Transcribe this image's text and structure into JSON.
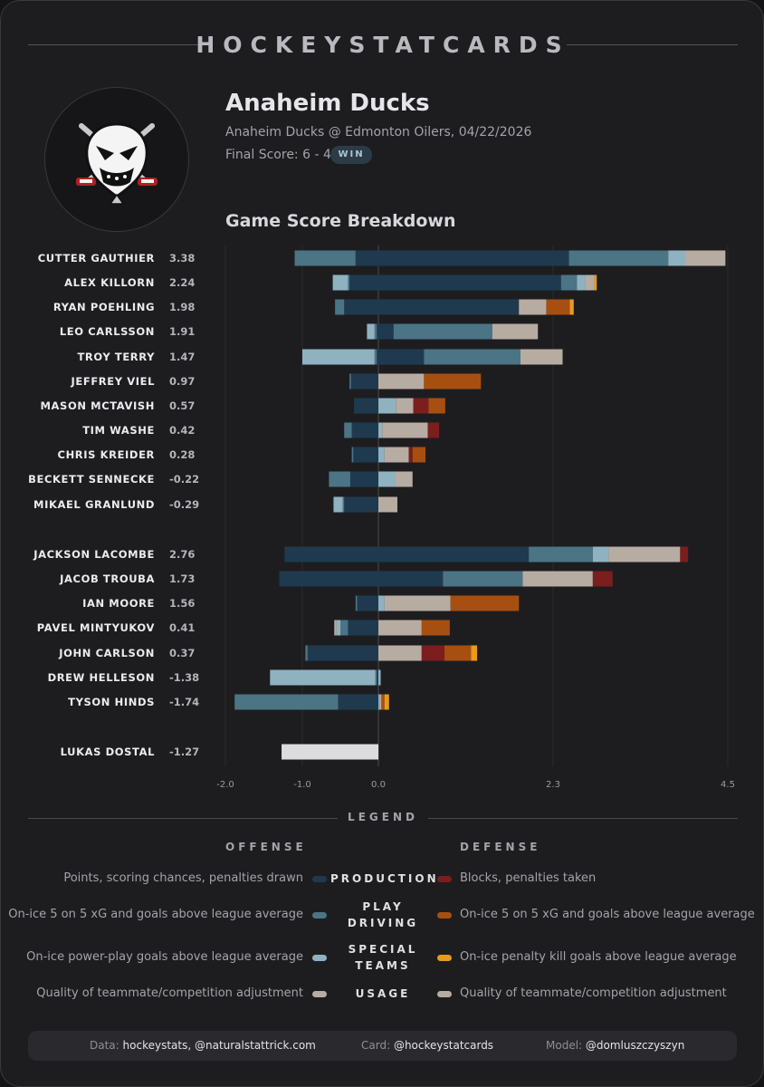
{
  "header": {
    "brand": "HOCKEYSTATCARDS",
    "team": "Anaheim Ducks",
    "game": "Anaheim Ducks @ Edmonton Oilers, 04/22/2026",
    "final_score": "Final Score: 6 - 4",
    "result": "WIN",
    "section_title": "Game Score Breakdown"
  },
  "colors": {
    "production_off": "#1f3a4f",
    "play_driving_off": "#4b7485",
    "special_teams_off": "#8fb2c1",
    "usage": "#b7aca2",
    "production_def": "#7a1e1e",
    "play_driving_def": "#a74f11",
    "special_teams_def": "#e99a1c",
    "goalie": "#dcdcdc"
  },
  "chart_data": {
    "type": "bar",
    "orientation": "horizontal",
    "stacked": true,
    "x_ticks": [
      "-2.0",
      "-1.0",
      "0.0",
      "2.3",
      "4.5"
    ],
    "segment_order": [
      "Production (offense)",
      "Play driving (offense)",
      "Special teams (offense)",
      "Usage",
      "Production (defense)",
      "Play driving (defense)",
      "Special teams (defense)"
    ],
    "players": [
      {
        "name": "CUTTER GAUTHIER",
        "score": "3.38",
        "pos": [
          2.5,
          1.25,
          0.22,
          0.5
        ],
        "neg": [
          -0.3,
          -0.8,
          0,
          0
        ]
      },
      {
        "name": "ALEX KILLORN",
        "score": "2.24",
        "pos": [
          2.4,
          0.2,
          0.1,
          0.12,
          0,
          0,
          0.03
        ],
        "neg": [
          -0.38,
          -0.02,
          -0.2
        ]
      },
      {
        "name": "RYAN POEHLING",
        "score": "1.98",
        "pos": [
          1.85,
          0,
          0,
          0.36,
          0,
          0.3,
          0.05
        ],
        "neg": [
          -0.45,
          -0.12
        ]
      },
      {
        "name": "LEO CARLSSON",
        "score": "1.91",
        "pos": [
          0.2,
          1.3,
          0,
          0.6
        ],
        "neg": [
          -0.02,
          -0.03,
          -0.1
        ]
      },
      {
        "name": "TROY TERRY",
        "score": "1.47",
        "pos": [
          0.6,
          1.27,
          0,
          0.55
        ],
        "neg": [
          -0.02,
          -0.03,
          -0.95
        ]
      },
      {
        "name": "JEFFREY VIEL",
        "score": "0.97",
        "pos": [
          0,
          0,
          0,
          0.6,
          0,
          0.75
        ],
        "neg": [
          -0.36,
          -0.02
        ]
      },
      {
        "name": "MASON MCTAVISH",
        "score": "0.57",
        "pos": [
          0,
          0,
          0.23,
          0.23,
          0.2,
          0.22
        ],
        "neg": [
          -0.32
        ]
      },
      {
        "name": "TIM WASHE",
        "score": "0.42",
        "pos": [
          0,
          0,
          0.05,
          0.6,
          0.15
        ],
        "neg": [
          -0.35,
          -0.1
        ]
      },
      {
        "name": "CHRIS KREIDER",
        "score": "0.28",
        "pos": [
          0,
          0,
          0.08,
          0.32,
          0.05,
          0.17
        ],
        "neg": [
          -0.33,
          -0.02
        ]
      },
      {
        "name": "BECKETT SENNECKE",
        "score": "-0.22",
        "pos": [
          0,
          0,
          0.22,
          0.23
        ],
        "neg": [
          -0.37,
          -0.28
        ]
      },
      {
        "name": "MIKAEL GRANLUND",
        "score": "-0.29",
        "pos": [
          0,
          0,
          0,
          0.25
        ],
        "neg": [
          -0.45,
          -0.02,
          -0.12
        ]
      },
      {
        "name": "JACKSON LACOMBE",
        "score": "2.76",
        "pos": [
          1.98,
          0.82,
          0.2,
          0.9,
          0.1
        ],
        "neg": [
          -1.23
        ]
      },
      {
        "name": "JACOB TROUBA",
        "score": "1.73",
        "pos": [
          0.85,
          1.05,
          0,
          0.9,
          0.25
        ],
        "neg": [
          -1.3
        ]
      },
      {
        "name": "IAN MOORE",
        "score": "1.56",
        "pos": [
          0,
          0,
          0.08,
          0.87,
          0,
          0.9
        ],
        "neg": [
          -0.28,
          -0.02
        ]
      },
      {
        "name": "PAVEL MINTYUKOV",
        "score": "0.41",
        "pos": [
          0,
          0,
          0,
          0.57,
          0,
          0.37
        ],
        "neg": [
          -0.4,
          -0.1,
          -0.05,
          -0.03
        ]
      },
      {
        "name": "JOHN CARLSON",
        "score": "0.37",
        "pos": [
          0,
          0,
          0,
          0.57,
          0.3,
          0.35,
          0.08
        ],
        "neg": [
          -0.93,
          -0.03
        ]
      },
      {
        "name": "DREW HELLESON",
        "score": "-1.38",
        "pos": [
          0,
          0,
          0.03
        ],
        "neg": [
          -0.02,
          -0.02,
          -1.38
        ]
      },
      {
        "name": "TYSON HINDS",
        "score": "-1.74",
        "pos": [
          0,
          0,
          0.02,
          0.02,
          0,
          0.04,
          0.06
        ],
        "neg": [
          -0.53,
          -1.35
        ]
      },
      {
        "name": "LUKAS DOSTAL",
        "score": "-1.27",
        "goalie": true,
        "pos": [],
        "neg": [
          -1.27
        ]
      }
    ]
  },
  "legend": {
    "title": "LEGEND",
    "offense": "OFFENSE",
    "defense": "DEFENSE",
    "rows": [
      {
        "category": "PRODUCTION",
        "offense_text": "Points, scoring chances, penalties drawn",
        "defense_text": "Blocks, penalties taken"
      },
      {
        "category": "PLAY DRIVING",
        "offense_text": "On-ice 5 on 5 xG and goals above league average",
        "defense_text": "On-ice 5 on 5 xG and goals above league average"
      },
      {
        "category": "SPECIAL TEAMS",
        "offense_text": "On-ice power-play goals above league average",
        "defense_text": "On-ice penalty kill goals above league average"
      },
      {
        "category": "USAGE",
        "offense_text": "Quality of teammate/competition adjustment",
        "defense_text": "Quality of teammate/competition adjustment"
      }
    ]
  },
  "footer": {
    "data_label": "Data:",
    "data_value": "hockeystats, @naturalstattrick.com",
    "card_label": "Card:",
    "card_value": "@hockeystatcards",
    "model_label": "Model:",
    "model_value": "@domluszczyszyn"
  }
}
